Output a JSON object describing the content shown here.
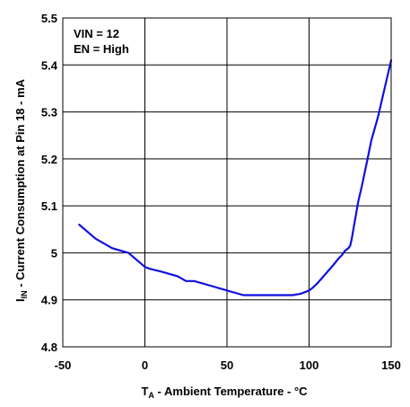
{
  "chart_data": {
    "type": "line",
    "xlabel": {
      "prefix": "T",
      "subscript": "A",
      "suffix": " - Ambient Temperature - °C"
    },
    "ylabel": {
      "prefix": "I",
      "subscript": "IN",
      "suffix": " - Current Consumption at Pin 18 - mA"
    },
    "xlim": [
      -50,
      150
    ],
    "ylim": [
      4.8,
      5.5
    ],
    "xticks": [
      -50,
      0,
      50,
      100,
      150
    ],
    "xtick_labels": [
      "-50",
      "0",
      "50",
      "100",
      "150"
    ],
    "yticks": [
      4.8,
      4.9,
      5.0,
      5.1,
      5.2,
      5.3,
      5.4,
      5.5
    ],
    "ytick_labels": [
      "4.8",
      "4.9",
      "5",
      "5.1",
      "5.2",
      "5.3",
      "5.4",
      "5.5"
    ],
    "grid": true,
    "annotations": [
      "VIN = 12",
      "EN = High"
    ],
    "series": [
      {
        "color": "#1010e0",
        "x": [
          -40,
          -30,
          -20,
          -10,
          -5,
          0,
          3,
          10,
          20,
          25,
          30,
          40,
          50,
          60,
          70,
          80,
          90,
          95,
          98,
          100,
          102,
          105,
          110,
          115,
          118,
          120,
          122,
          124,
          125,
          126,
          128,
          130,
          132,
          135,
          138,
          142,
          146,
          150
        ],
        "y": [
          5.06,
          5.03,
          5.01,
          5.0,
          4.985,
          4.97,
          4.966,
          4.96,
          4.95,
          4.94,
          4.94,
          4.93,
          4.92,
          4.91,
          4.91,
          4.91,
          4.91,
          4.913,
          4.917,
          4.92,
          4.925,
          4.935,
          4.955,
          4.975,
          4.988,
          4.995,
          5.005,
          5.01,
          5.015,
          5.03,
          5.07,
          5.11,
          5.14,
          5.19,
          5.24,
          5.29,
          5.35,
          5.41
        ]
      }
    ]
  }
}
